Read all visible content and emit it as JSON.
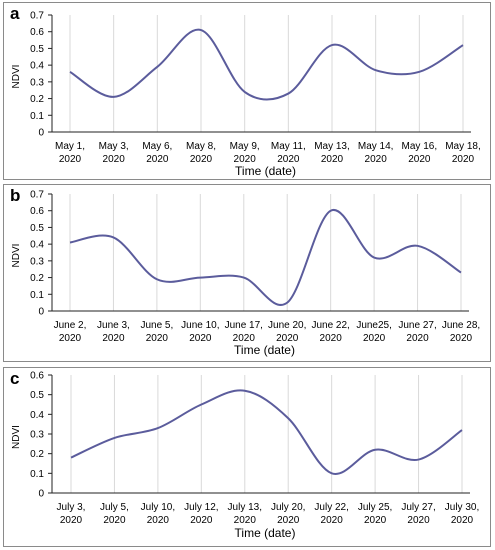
{
  "chart_data": [
    {
      "panel": "a",
      "type": "line",
      "ylabel": "NDVI",
      "xlabel": "Time (date)",
      "ylim": [
        0,
        0.7
      ],
      "yticks": [
        "0",
        "0.1",
        "0.2",
        "0.3",
        "0.4",
        "0.5",
        "0.6",
        "0.7"
      ],
      "categories": [
        [
          "May 1,",
          "2020"
        ],
        [
          "May 3,",
          "2020"
        ],
        [
          "May 6,",
          "2020"
        ],
        [
          "May 8,",
          "2020"
        ],
        [
          "May 9,",
          "2020"
        ],
        [
          "May 11,",
          "2020"
        ],
        [
          "May 13,",
          "2020"
        ],
        [
          "May 14,",
          "2020"
        ],
        [
          "May 16,",
          "2020"
        ],
        [
          "May 18,",
          "2020"
        ]
      ],
      "series": [
        {
          "values": [
            0.36,
            0.21,
            0.39,
            0.61,
            0.24,
            0.23,
            0.52,
            0.37,
            0.36,
            0.52
          ]
        }
      ],
      "line_color": "#5b5c9c",
      "grid": "vertical"
    },
    {
      "panel": "b",
      "type": "line",
      "ylabel": "NDVI",
      "xlabel": "Time (date)",
      "ylim": [
        0,
        0.7
      ],
      "yticks": [
        "0",
        "0.1",
        "0.2",
        "0.3",
        "0.4",
        "0.5",
        "0.6",
        "0.7"
      ],
      "categories": [
        [
          "June 2,",
          "2020"
        ],
        [
          "June 3,",
          "2020"
        ],
        [
          "June 5,",
          "2020"
        ],
        [
          "June 10,",
          "2020"
        ],
        [
          "June 17,",
          "2020"
        ],
        [
          "June 20,",
          "2020"
        ],
        [
          "June 22,",
          "2020"
        ],
        [
          "June25,",
          "2020"
        ],
        [
          "June 27,",
          "2020"
        ],
        [
          "June 28,",
          "2020"
        ]
      ],
      "series": [
        {
          "values": [
            0.41,
            0.44,
            0.19,
            0.2,
            0.2,
            0.05,
            0.6,
            0.32,
            0.39,
            0.23
          ]
        }
      ],
      "line_color": "#5b5c9c",
      "grid": "vertical"
    },
    {
      "panel": "c",
      "type": "line",
      "ylabel": "NDVI",
      "xlabel": "Time (date)",
      "ylim": [
        0,
        0.6
      ],
      "yticks": [
        "0",
        "0.1",
        "0.2",
        "0.3",
        "0.4",
        "0.5",
        "0.6"
      ],
      "categories": [
        [
          "July 3,",
          "2020"
        ],
        [
          "July 5,",
          "2020"
        ],
        [
          "July 10,",
          "2020"
        ],
        [
          "July 12,",
          "2020"
        ],
        [
          "July 13,",
          "2020"
        ],
        [
          "July 20,",
          "2020"
        ],
        [
          "July 22,",
          "2020"
        ],
        [
          "July 25,",
          "2020"
        ],
        [
          "July 27,",
          "2020"
        ],
        [
          "July 30,",
          "2020"
        ]
      ],
      "series": [
        {
          "values": [
            0.18,
            0.28,
            0.33,
            0.45,
            0.52,
            0.38,
            0.1,
            0.22,
            0.17,
            0.32
          ]
        }
      ],
      "line_color": "#5b5c9c",
      "grid": "vertical"
    }
  ]
}
